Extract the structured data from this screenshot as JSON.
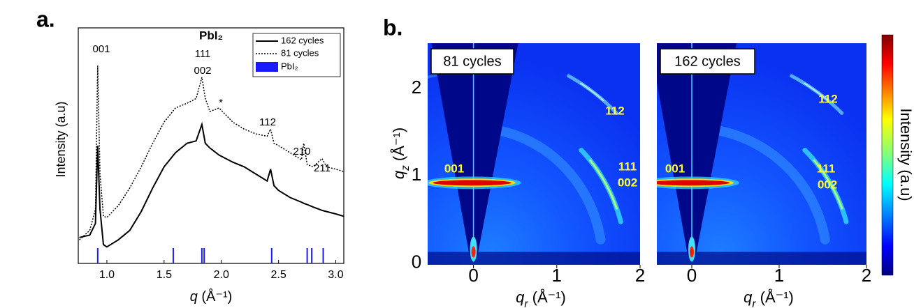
{
  "chart_data": [
    {
      "type": "line",
      "panel_label": "a.",
      "title": "PbI₂",
      "xlabel": "q (Å⁻¹)",
      "ylabel": "Intensity (a.u)",
      "x": [
        0.76,
        0.85,
        0.9,
        0.92,
        0.94,
        0.97,
        1.0,
        1.1,
        1.2,
        1.3,
        1.4,
        1.5,
        1.6,
        1.7,
        1.78,
        1.83,
        1.86,
        1.9,
        1.98,
        2.1,
        2.2,
        2.3,
        2.4,
        2.43,
        2.46,
        2.5,
        2.6,
        2.7,
        2.72,
        2.75,
        2.8,
        2.88,
        2.92,
        3.0,
        3.07
      ],
      "series": [
        {
          "name": "162 cycles",
          "color": "#000000",
          "dash": false,
          "values": [
            11,
            12,
            17,
            50,
            23,
            8,
            7,
            10,
            14,
            22,
            32,
            41,
            47,
            51,
            52,
            59,
            51,
            49,
            46,
            43,
            41,
            38,
            35,
            40,
            33,
            31,
            28,
            26,
            25.5,
            25,
            24,
            22.5,
            22,
            21,
            20
          ]
        },
        {
          "name": "81 cycles",
          "color": "#000000",
          "dash": true,
          "values": [
            10,
            14,
            23,
            84,
            38,
            20,
            19.5,
            24.5,
            32,
            41,
            51,
            60,
            66,
            68,
            70,
            79,
            70,
            64.5,
            66,
            60,
            57,
            55,
            54,
            57,
            51,
            50,
            47,
            44,
            51,
            42,
            41,
            44.5,
            41,
            40,
            39
          ]
        }
      ],
      "reference": {
        "name": "PbI₂",
        "color": "#1a1aff",
        "x": [
          0.92,
          1.58,
          1.83,
          1.85,
          2.44,
          2.75,
          2.79,
          2.89
        ]
      },
      "annotations": [
        "001",
        "111",
        "002",
        "*",
        "112",
        "210",
        "211"
      ],
      "xlim": [
        0.75,
        3.07
      ],
      "ylim": [
        0,
        100
      ],
      "xticks": [
        {
          "value": 1.0,
          "label": "1.0"
        },
        {
          "value": 1.5,
          "label": "1.5"
        },
        {
          "value": 2.0,
          "label": "2.0"
        },
        {
          "value": 2.5,
          "label": "2.5"
        },
        {
          "value": 3.0,
          "label": "3.0"
        }
      ],
      "legend": "upper right"
    },
    {
      "type": "image",
      "panel_label": "b.",
      "xlabel": "qr (Å⁻¹)",
      "ylabel": "qz (Å⁻¹)",
      "colorbar_label": "Intensity (a.u)",
      "ylim": [
        -0.02,
        2.52
      ],
      "yticks": [
        0,
        1,
        2
      ],
      "panels": [
        {
          "title": "81 cycles",
          "xlim": [
            -0.55,
            2
          ],
          "xticks": [
            0,
            1,
            2
          ],
          "annotations": [
            "112",
            "111",
            "002",
            "001"
          ]
        },
        {
          "title": "162 cycles",
          "xlim": [
            -0.4,
            2
          ],
          "xticks": [
            0,
            1,
            2
          ],
          "annotations": [
            "112",
            "111",
            "002",
            "001"
          ]
        }
      ]
    }
  ]
}
